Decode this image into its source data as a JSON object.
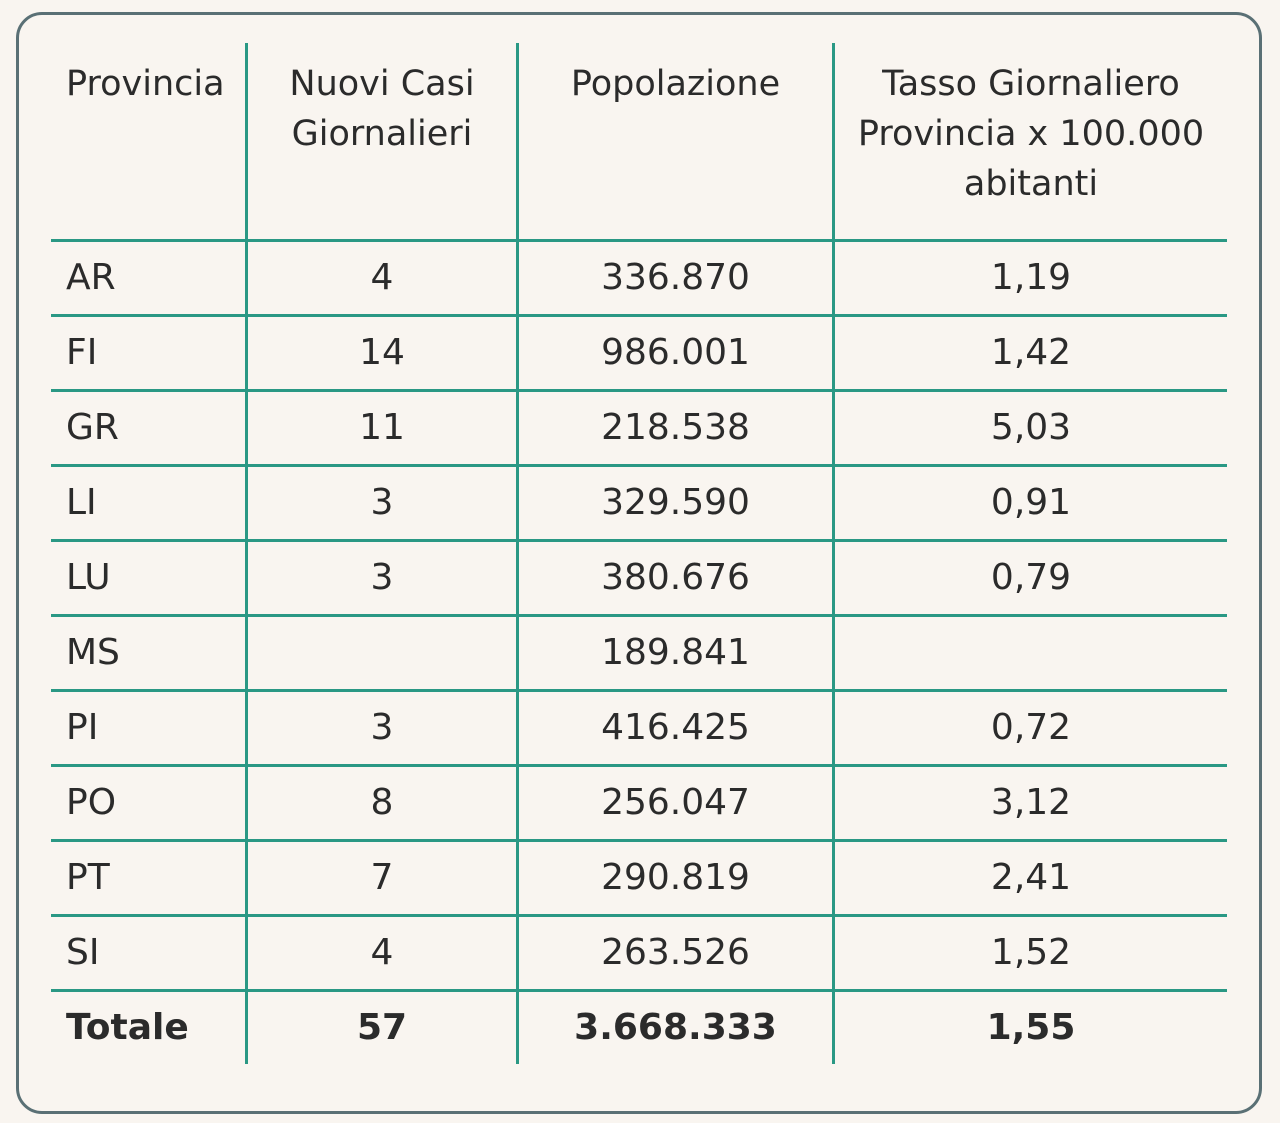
{
  "table": {
    "headers": [
      "Provincia",
      "Nuovi Casi Giornalieri",
      "Popolazione",
      "Tasso Giornaliero Provincia x 100.000 abitanti"
    ],
    "rows": [
      {
        "provincia": "AR",
        "casi": "4",
        "popolazione": "336.870",
        "tasso": "1,19"
      },
      {
        "provincia": "FI",
        "casi": "14",
        "popolazione": "986.001",
        "tasso": "1,42"
      },
      {
        "provincia": "GR",
        "casi": "11",
        "popolazione": "218.538",
        "tasso": "5,03"
      },
      {
        "provincia": "LI",
        "casi": "3",
        "popolazione": "329.590",
        "tasso": "0,91"
      },
      {
        "provincia": "LU",
        "casi": "3",
        "popolazione": "380.676",
        "tasso": "0,79"
      },
      {
        "provincia": "MS",
        "casi": "",
        "popolazione": "189.841",
        "tasso": ""
      },
      {
        "provincia": "PI",
        "casi": "3",
        "popolazione": "416.425",
        "tasso": "0,72"
      },
      {
        "provincia": "PO",
        "casi": "8",
        "popolazione": "256.047",
        "tasso": "3,12"
      },
      {
        "provincia": "PT",
        "casi": "7",
        "popolazione": "290.819",
        "tasso": "2,41"
      },
      {
        "provincia": "SI",
        "casi": "4",
        "popolazione": "263.526",
        "tasso": "1,52"
      }
    ],
    "total": {
      "label": "Totale",
      "casi": "57",
      "popolazione": "3.668.333",
      "tasso": "1,55"
    }
  },
  "colors": {
    "background": "#f9f5f0",
    "grid_lines": "#2a9884",
    "card_border": "#5a7075",
    "text": "#2b2b2b"
  }
}
